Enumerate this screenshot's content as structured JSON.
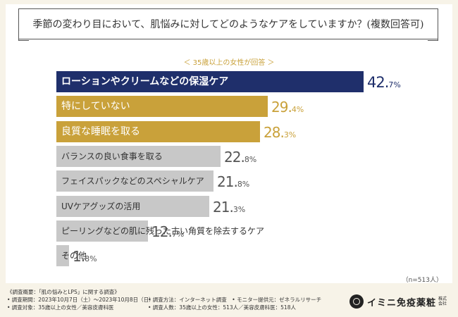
{
  "title": "季節の変わり目において、肌悩みに対してどのようなケアをしていますか？(複数回答可)",
  "subtitle": "＜ 35歳以上の女性が回答 ＞",
  "n_note": "（n=513人）",
  "colors": {
    "top": "#1f2f6b",
    "gold": "#c9a13a",
    "grey": "#c8c8c8"
  },
  "chart_data": {
    "type": "bar",
    "orientation": "horizontal",
    "categories": [
      "ローションやクリームなどの保湿ケア",
      "特にしていない",
      "良質な睡眠を取る",
      "バランスの良い食事を取る",
      "フェイスパックなどのスペシャルケア",
      "UVケアグッズの活用",
      "ピーリングなどの肌に残った古い角質を除去するケア",
      "その他"
    ],
    "values": [
      42.7,
      29.4,
      28.3,
      22.8,
      21.8,
      21.3,
      12.7,
      1.8
    ],
    "value_labels": [
      {
        "num": "42.",
        "dec": "7%"
      },
      {
        "num": "29.",
        "dec": "4%"
      },
      {
        "num": "28.",
        "dec": "3%"
      },
      {
        "num": "22.",
        "dec": "8%"
      },
      {
        "num": "21.",
        "dec": "8%"
      },
      {
        "num": "21.",
        "dec": "3%"
      },
      {
        "num": "12.",
        "dec": "7%"
      },
      {
        "num": "1.",
        "dec": "8%"
      }
    ],
    "styles": [
      "top",
      "gold",
      "gold",
      "grey",
      "grey",
      "grey",
      "grey",
      "grey"
    ],
    "xlim": [
      0,
      42.7
    ],
    "unit": "%"
  },
  "footer": {
    "rows": [
      [
        "《調査概要：「肌の悩みとLPS」に関する調査》",
        ""
      ],
      [
        "• 調査期間：2023年10月7日（土）〜2023年10月8日（日）",
        "• 調査方法：インターネット調査　• モニター提供元：ゼネラルリサーチ"
      ],
      [
        "• 調査対象：35歳以上の女性／美容皮膚科医",
        "• 調査人数：35歳以上の女性：513人／美容皮膚科医：518人"
      ]
    ]
  },
  "logo": {
    "text": "イミニ免疫薬粧",
    "small": "株式会社"
  }
}
